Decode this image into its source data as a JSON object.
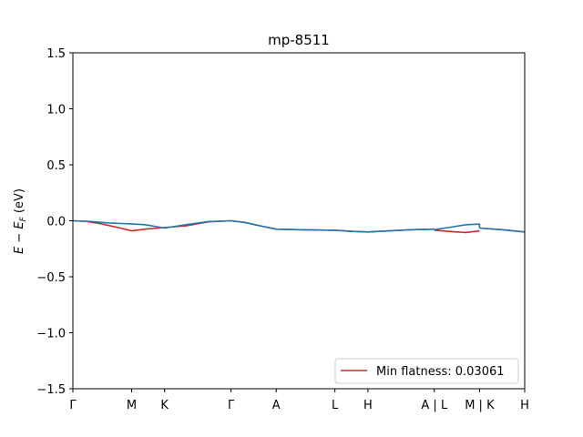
{
  "chart_data": {
    "type": "line",
    "title": "mp-8511",
    "xlabel": "",
    "ylabel": "E − E_F (eV)",
    "ylabel_parts": {
      "main": "E − E",
      "sub": "F",
      "unit": " (eV)"
    },
    "ylim": [
      -1.5,
      1.5
    ],
    "yticks": [
      {
        "value": 1.5,
        "label": "1.5"
      },
      {
        "value": 1.0,
        "label": "1.0"
      },
      {
        "value": 0.5,
        "label": "0.5"
      },
      {
        "value": 0.0,
        "label": "0.0"
      },
      {
        "value": -0.5,
        "label": "−0.5"
      },
      {
        "value": -1.0,
        "label": "−1.0"
      },
      {
        "value": -1.5,
        "label": "−1.5"
      }
    ],
    "xlim": [
      0,
      10
    ],
    "kpoints": [
      {
        "label": "Γ",
        "x": 0.0
      },
      {
        "label": "M",
        "x": 1.3
      },
      {
        "label": "K",
        "x": 2.03
      },
      {
        "label": "Γ",
        "x": 3.5
      },
      {
        "label": "A",
        "x": 4.5
      },
      {
        "label": "L",
        "x": 5.8
      },
      {
        "label": "H",
        "x": 6.53
      },
      {
        "label": "A | L",
        "x": 8.0
      },
      {
        "label": "M | K",
        "x": 9.0
      },
      {
        "label": "H",
        "x": 10.0
      }
    ],
    "legend": {
      "placement": "lower-right",
      "label": "Min flatness: 0.03061"
    },
    "series": [
      {
        "color": "#d62728",
        "segments": [
          [
            [
              0.0,
              0.0
            ],
            [
              0.3,
              -0.006
            ],
            [
              0.6,
              -0.025
            ],
            [
              1.0,
              -0.06
            ],
            [
              1.3,
              -0.09
            ],
            [
              1.6,
              -0.075
            ],
            [
              2.03,
              -0.06
            ],
            [
              2.5,
              -0.045
            ],
            [
              3.0,
              -0.01
            ],
            [
              3.5,
              0.0
            ],
            [
              3.8,
              -0.015
            ],
            [
              4.2,
              -0.05
            ],
            [
              4.5,
              -0.075
            ],
            [
              5.0,
              -0.08
            ],
            [
              5.8,
              -0.085
            ],
            [
              6.2,
              -0.095
            ],
            [
              6.53,
              -0.1
            ],
            [
              7.0,
              -0.09
            ],
            [
              7.5,
              -0.08
            ],
            [
              8.0,
              -0.075
            ]
          ],
          [
            [
              8.0,
              -0.085
            ],
            [
              8.5,
              -0.1
            ],
            [
              8.7,
              -0.105
            ],
            [
              9.0,
              -0.09
            ]
          ],
          [
            [
              9.0,
              -0.065
            ],
            [
              9.5,
              -0.08
            ],
            [
              10.0,
              -0.1
            ]
          ]
        ]
      },
      {
        "color": "#1f77b4",
        "segments": [
          [
            [
              0.0,
              0.0
            ],
            [
              0.4,
              -0.006
            ],
            [
              0.8,
              -0.02
            ],
            [
              1.3,
              -0.028
            ],
            [
              1.6,
              -0.035
            ],
            [
              2.03,
              -0.065
            ],
            [
              2.5,
              -0.035
            ],
            [
              3.0,
              -0.008
            ],
            [
              3.5,
              0.0
            ],
            [
              3.8,
              -0.015
            ],
            [
              4.2,
              -0.05
            ],
            [
              4.5,
              -0.075
            ],
            [
              5.0,
              -0.08
            ],
            [
              5.8,
              -0.085
            ],
            [
              6.2,
              -0.095
            ],
            [
              6.53,
              -0.1
            ],
            [
              7.0,
              -0.09
            ],
            [
              7.5,
              -0.08
            ],
            [
              8.0,
              -0.075
            ]
          ],
          [
            [
              8.0,
              -0.08
            ],
            [
              8.4,
              -0.055
            ],
            [
              8.7,
              -0.035
            ],
            [
              9.0,
              -0.03
            ],
            [
              9.0,
              -0.065
            ]
          ],
          [
            [
              9.0,
              -0.065
            ],
            [
              9.5,
              -0.08
            ],
            [
              10.0,
              -0.1
            ]
          ]
        ]
      }
    ]
  }
}
